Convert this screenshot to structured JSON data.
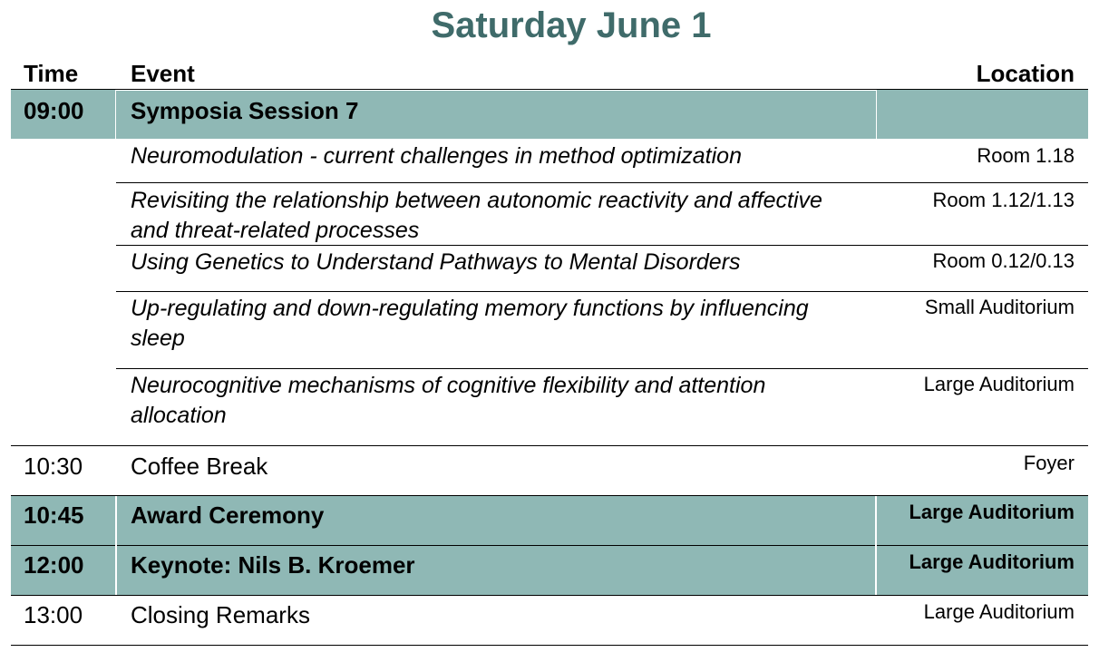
{
  "title": "Saturday June 1",
  "headers": {
    "time": "Time",
    "event": "Event",
    "location": "Location"
  },
  "rows": [
    {
      "time": "09:00",
      "event": "Symposia Session 7",
      "location": ""
    },
    {
      "time": "",
      "event": "Neuromodulation - current challenges in method optimization",
      "location": "Room 1.18"
    },
    {
      "time": "",
      "event": "Revisiting the relationship between autonomic reactivity and affective and threat-related processes",
      "location": "Room 1.12/1.13"
    },
    {
      "time": "",
      "event": "Using Genetics to Understand Pathways to Mental Disorders",
      "location": "Room 0.12/0.13"
    },
    {
      "time": "",
      "event": "Up-regulating and down-regulating memory functions by influencing sleep",
      "location": "Small Auditorium"
    },
    {
      "time": "",
      "event": "Neurocognitive mechanisms of cognitive flexibility and attention allocation",
      "location": "Large Auditorium"
    },
    {
      "time": "10:30",
      "event": "Coffee Break",
      "location": "Foyer"
    },
    {
      "time": "10:45",
      "event": "Award Ceremony",
      "location": "Large Auditorium"
    },
    {
      "time": "12:00",
      "event": "Keynote: Nils B. Kroemer",
      "location": "Large Auditorium"
    },
    {
      "time": "13:00",
      "event": "Closing Remarks",
      "location": "Large Auditorium"
    }
  ],
  "colors": {
    "title": "#3f6b6a",
    "highlight": "#8fb8b5"
  }
}
